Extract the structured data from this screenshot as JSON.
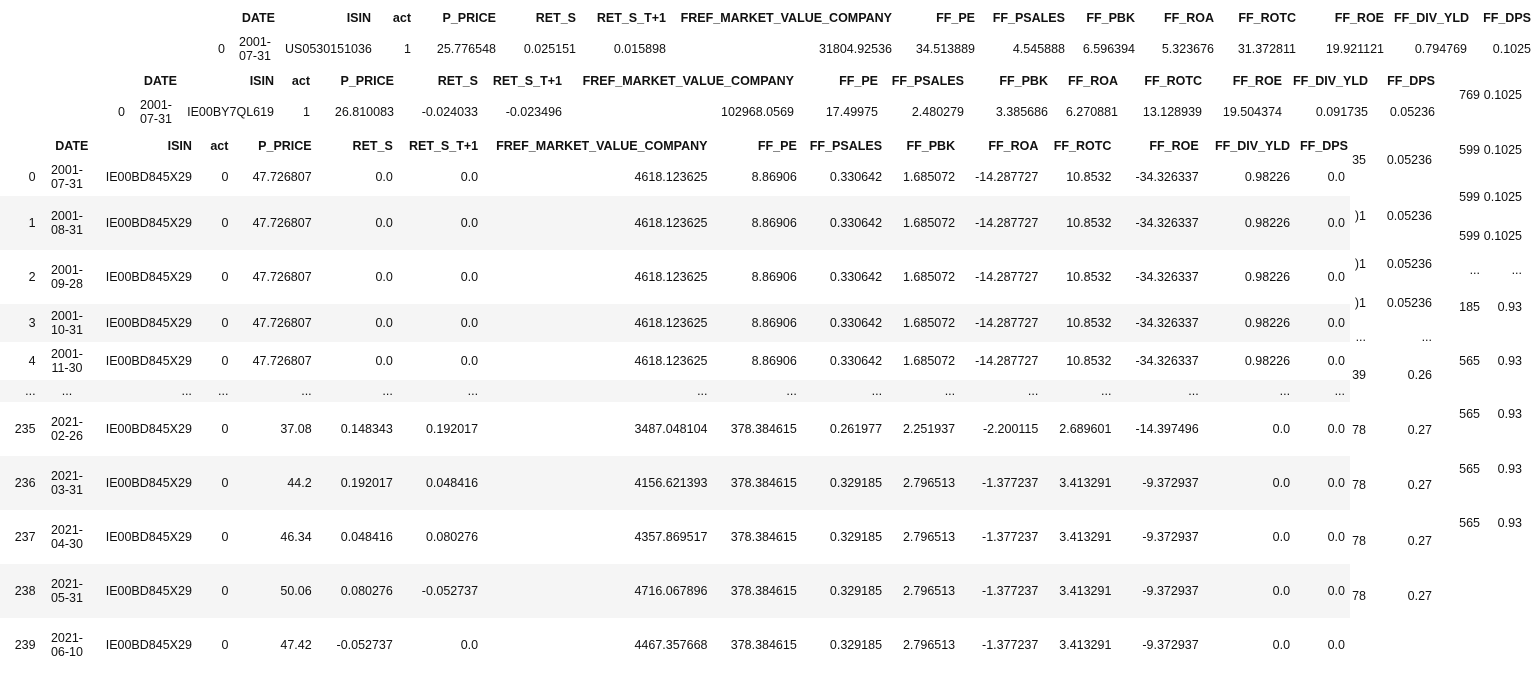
{
  "columns": [
    "DATE",
    "ISIN",
    "act",
    "P_PRICE",
    "RET_S",
    "RET_S_T+1",
    "FREF_MARKET_VALUE_COMPANY",
    "FF_PE",
    "FF_PSALES",
    "FF_PBK",
    "FF_ROA",
    "FF_ROTC",
    "FF_ROE",
    "FF_DIV_YLD",
    "FF_DPS"
  ],
  "df1": {
    "rows": [
      {
        "idx": "0",
        "cells": [
          "2001-07-31",
          "US0530151036",
          "1",
          "25.776548",
          "0.025151",
          "0.015898",
          "31804.92536",
          "34.513889",
          "4.545888",
          "6.596394",
          "5.323676",
          "31.372811",
          "19.921121",
          "0.794769",
          "0.1025"
        ]
      }
    ]
  },
  "df2": {
    "rows": [
      {
        "idx": "0",
        "cells": [
          "2001-07-31",
          "IE00BY7QL619",
          "1",
          "26.810083",
          "-0.024033",
          "-0.023496",
          "102968.0569",
          "17.49975",
          "2.480279",
          "3.385686",
          "6.270881",
          "13.128939",
          "19.504374",
          "0.091735",
          "0.05236"
        ]
      }
    ]
  },
  "df3": {
    "rows": [
      {
        "idx": "0",
        "cells": [
          "2001-07-31",
          "IE00BD845X29",
          "0",
          "47.726807",
          "0.0",
          "0.0",
          "4618.123625",
          "8.86906",
          "0.330642",
          "1.685072",
          "-14.287727",
          "10.8532",
          "-34.326337",
          "0.98226",
          "0.0"
        ]
      },
      {
        "idx": "1",
        "cells": [
          "2001-08-31",
          "IE00BD845X29",
          "0",
          "47.726807",
          "0.0",
          "0.0",
          "4618.123625",
          "8.86906",
          "0.330642",
          "1.685072",
          "-14.287727",
          "10.8532",
          "-34.326337",
          "0.98226",
          "0.0"
        ]
      },
      {
        "idx": "2",
        "cells": [
          "2001-09-28",
          "IE00BD845X29",
          "0",
          "47.726807",
          "0.0",
          "0.0",
          "4618.123625",
          "8.86906",
          "0.330642",
          "1.685072",
          "-14.287727",
          "10.8532",
          "-34.326337",
          "0.98226",
          "0.0"
        ]
      },
      {
        "idx": "3",
        "cells": [
          "2001-10-31",
          "IE00BD845X29",
          "0",
          "47.726807",
          "0.0",
          "0.0",
          "4618.123625",
          "8.86906",
          "0.330642",
          "1.685072",
          "-14.287727",
          "10.8532",
          "-34.326337",
          "0.98226",
          "0.0"
        ]
      },
      {
        "idx": "4",
        "cells": [
          "2001-11-30",
          "IE00BD845X29",
          "0",
          "47.726807",
          "0.0",
          "0.0",
          "4618.123625",
          "8.86906",
          "0.330642",
          "1.685072",
          "-14.287727",
          "10.8532",
          "-34.326337",
          "0.98226",
          "0.0"
        ]
      },
      {
        "idx": "...",
        "cells": [
          "...",
          "...",
          "...",
          "...",
          "...",
          "...",
          "...",
          "...",
          "...",
          "...",
          "...",
          "...",
          "...",
          "...",
          "..."
        ]
      },
      {
        "idx": "235",
        "cells": [
          "2021-02-26",
          "IE00BD845X29",
          "0",
          "37.08",
          "0.148343",
          "0.192017",
          "3487.048104",
          "378.384615",
          "0.261977",
          "2.251937",
          "-2.200115",
          "2.689601",
          "-14.397496",
          "0.0",
          "0.0"
        ]
      },
      {
        "idx": "236",
        "cells": [
          "2021-03-31",
          "IE00BD845X29",
          "0",
          "44.2",
          "0.192017",
          "0.048416",
          "4156.621393",
          "378.384615",
          "0.329185",
          "2.796513",
          "-1.377237",
          "3.413291",
          "-9.372937",
          "0.0",
          "0.0"
        ]
      },
      {
        "idx": "237",
        "cells": [
          "2021-04-30",
          "IE00BD845X29",
          "0",
          "46.34",
          "0.048416",
          "0.080276",
          "4357.869517",
          "378.384615",
          "0.329185",
          "2.796513",
          "-1.377237",
          "3.413291",
          "-9.372937",
          "0.0",
          "0.0"
        ]
      },
      {
        "idx": "238",
        "cells": [
          "2021-05-31",
          "IE00BD845X29",
          "0",
          "50.06",
          "0.080276",
          "-0.052737",
          "4716.067896",
          "378.384615",
          "0.329185",
          "2.796513",
          "-1.377237",
          "3.413291",
          "-9.372937",
          "0.0",
          "0.0"
        ]
      },
      {
        "idx": "239",
        "cells": [
          "2021-06-10",
          "IE00BD845X29",
          "0",
          "47.42",
          "-0.052737",
          "0.0",
          "4467.357668",
          "378.384615",
          "0.329185",
          "2.796513",
          "-1.377237",
          "3.413291",
          "-9.372937",
          "0.0",
          "0.0"
        ]
      }
    ]
  },
  "background_fragments": {
    "df1_tail": [
      {
        "div": "769",
        "dps": "0.1025"
      },
      {
        "div": "599",
        "dps": "0.1025"
      },
      {
        "div": "599",
        "dps": "0.1025"
      },
      {
        "div": "599",
        "dps": "0.1025"
      },
      {
        "div": "...",
        "dps": "..."
      },
      {
        "div": "185",
        "dps": "0.93"
      },
      {
        "div": "565",
        "dps": "0.93"
      },
      {
        "div": "565",
        "dps": "0.93"
      },
      {
        "div": "565",
        "dps": "0.93"
      },
      {
        "div": "565",
        "dps": "0.93"
      }
    ],
    "df2_tail": [
      {
        "div": "35",
        "dps": "0.05236"
      },
      {
        "div": ")1",
        "dps": "0.05236"
      },
      {
        "div": ")1",
        "dps": "0.05236"
      },
      {
        "div": ")1",
        "dps": "0.05236"
      },
      {
        "div": "...",
        "dps": "..."
      },
      {
        "div": "39",
        "dps": "0.26"
      },
      {
        "div": "78",
        "dps": "0.27"
      },
      {
        "div": "78",
        "dps": "0.27"
      },
      {
        "div": "78",
        "dps": "0.27"
      },
      {
        "div": "78",
        "dps": "0.27"
      }
    ]
  }
}
